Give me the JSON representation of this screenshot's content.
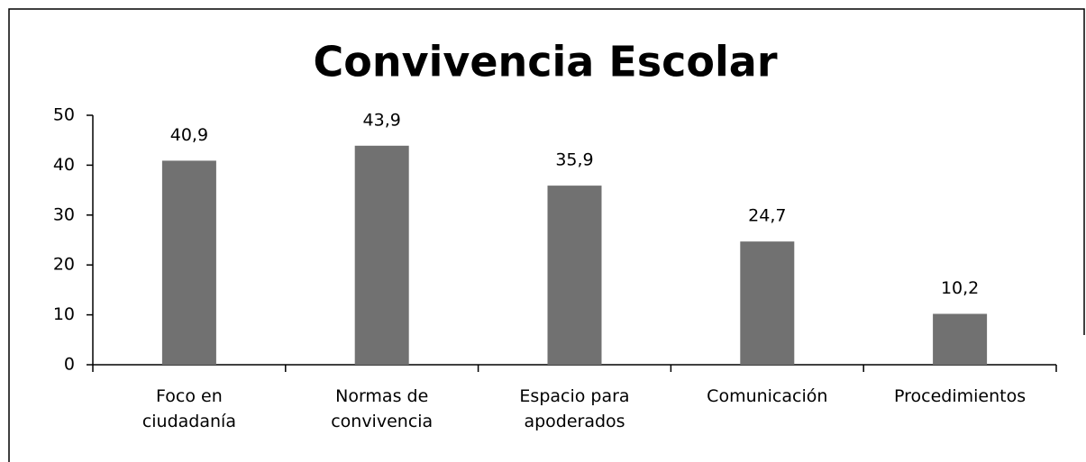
{
  "chart_data": {
    "type": "bar",
    "title": "Convivencia Escolar",
    "categories": [
      "Foco en\nciudadanía",
      "Normas de\nconvivencia",
      "Espacio para\napoderados",
      "Comunicación",
      "Procedimientos"
    ],
    "values": [
      40.9,
      43.9,
      35.9,
      24.7,
      10.2
    ],
    "value_labels": [
      "40,9",
      "43,9",
      "35,9",
      "24,7",
      "10,2"
    ],
    "color": "#717171",
    "ylim": [
      0,
      50
    ],
    "yticks": [
      0,
      10,
      20,
      30,
      40,
      50
    ],
    "grid": false
  }
}
